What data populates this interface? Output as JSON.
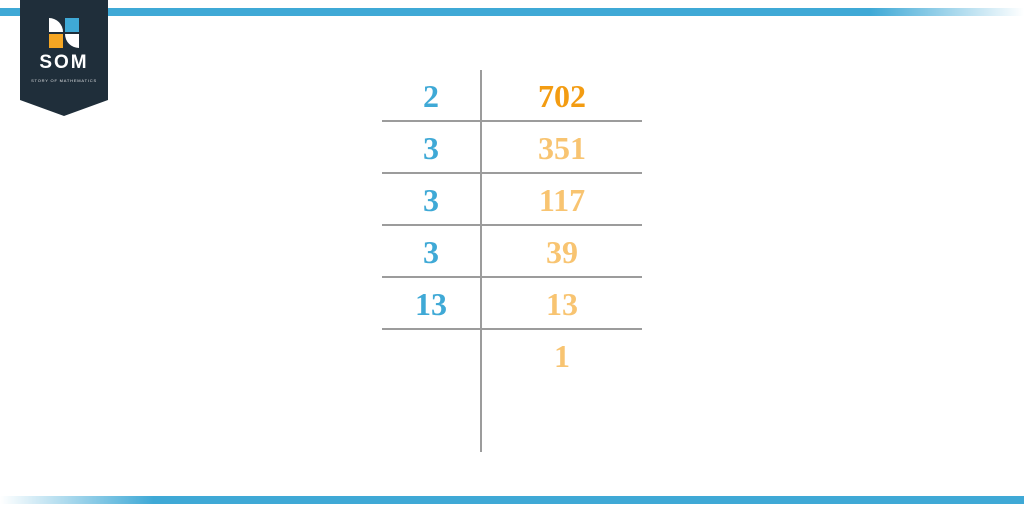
{
  "logo": {
    "text": "SOM",
    "subtitle": "STORY OF MATHEMATICS"
  },
  "colors": {
    "divisor": "#3fa9d6",
    "quotient_first": "#f39c12",
    "quotient_rest": "#f8c471",
    "line": "#9c9c9c",
    "badge": "#1f2e3a",
    "bar": "#3fa9d6"
  },
  "factorization": {
    "rows": [
      {
        "divisor": "2",
        "quotient": "702",
        "quotient_color": "#f39c12"
      },
      {
        "divisor": "3",
        "quotient": "351",
        "quotient_color": "#f8c471"
      },
      {
        "divisor": "3",
        "quotient": "117",
        "quotient_color": "#f8c471"
      },
      {
        "divisor": "3",
        "quotient": "39",
        "quotient_color": "#f8c471"
      },
      {
        "divisor": "13",
        "quotient": "13",
        "quotient_color": "#f8c471"
      },
      {
        "divisor": "",
        "quotient": "1",
        "quotient_color": "#f8c471"
      }
    ]
  }
}
